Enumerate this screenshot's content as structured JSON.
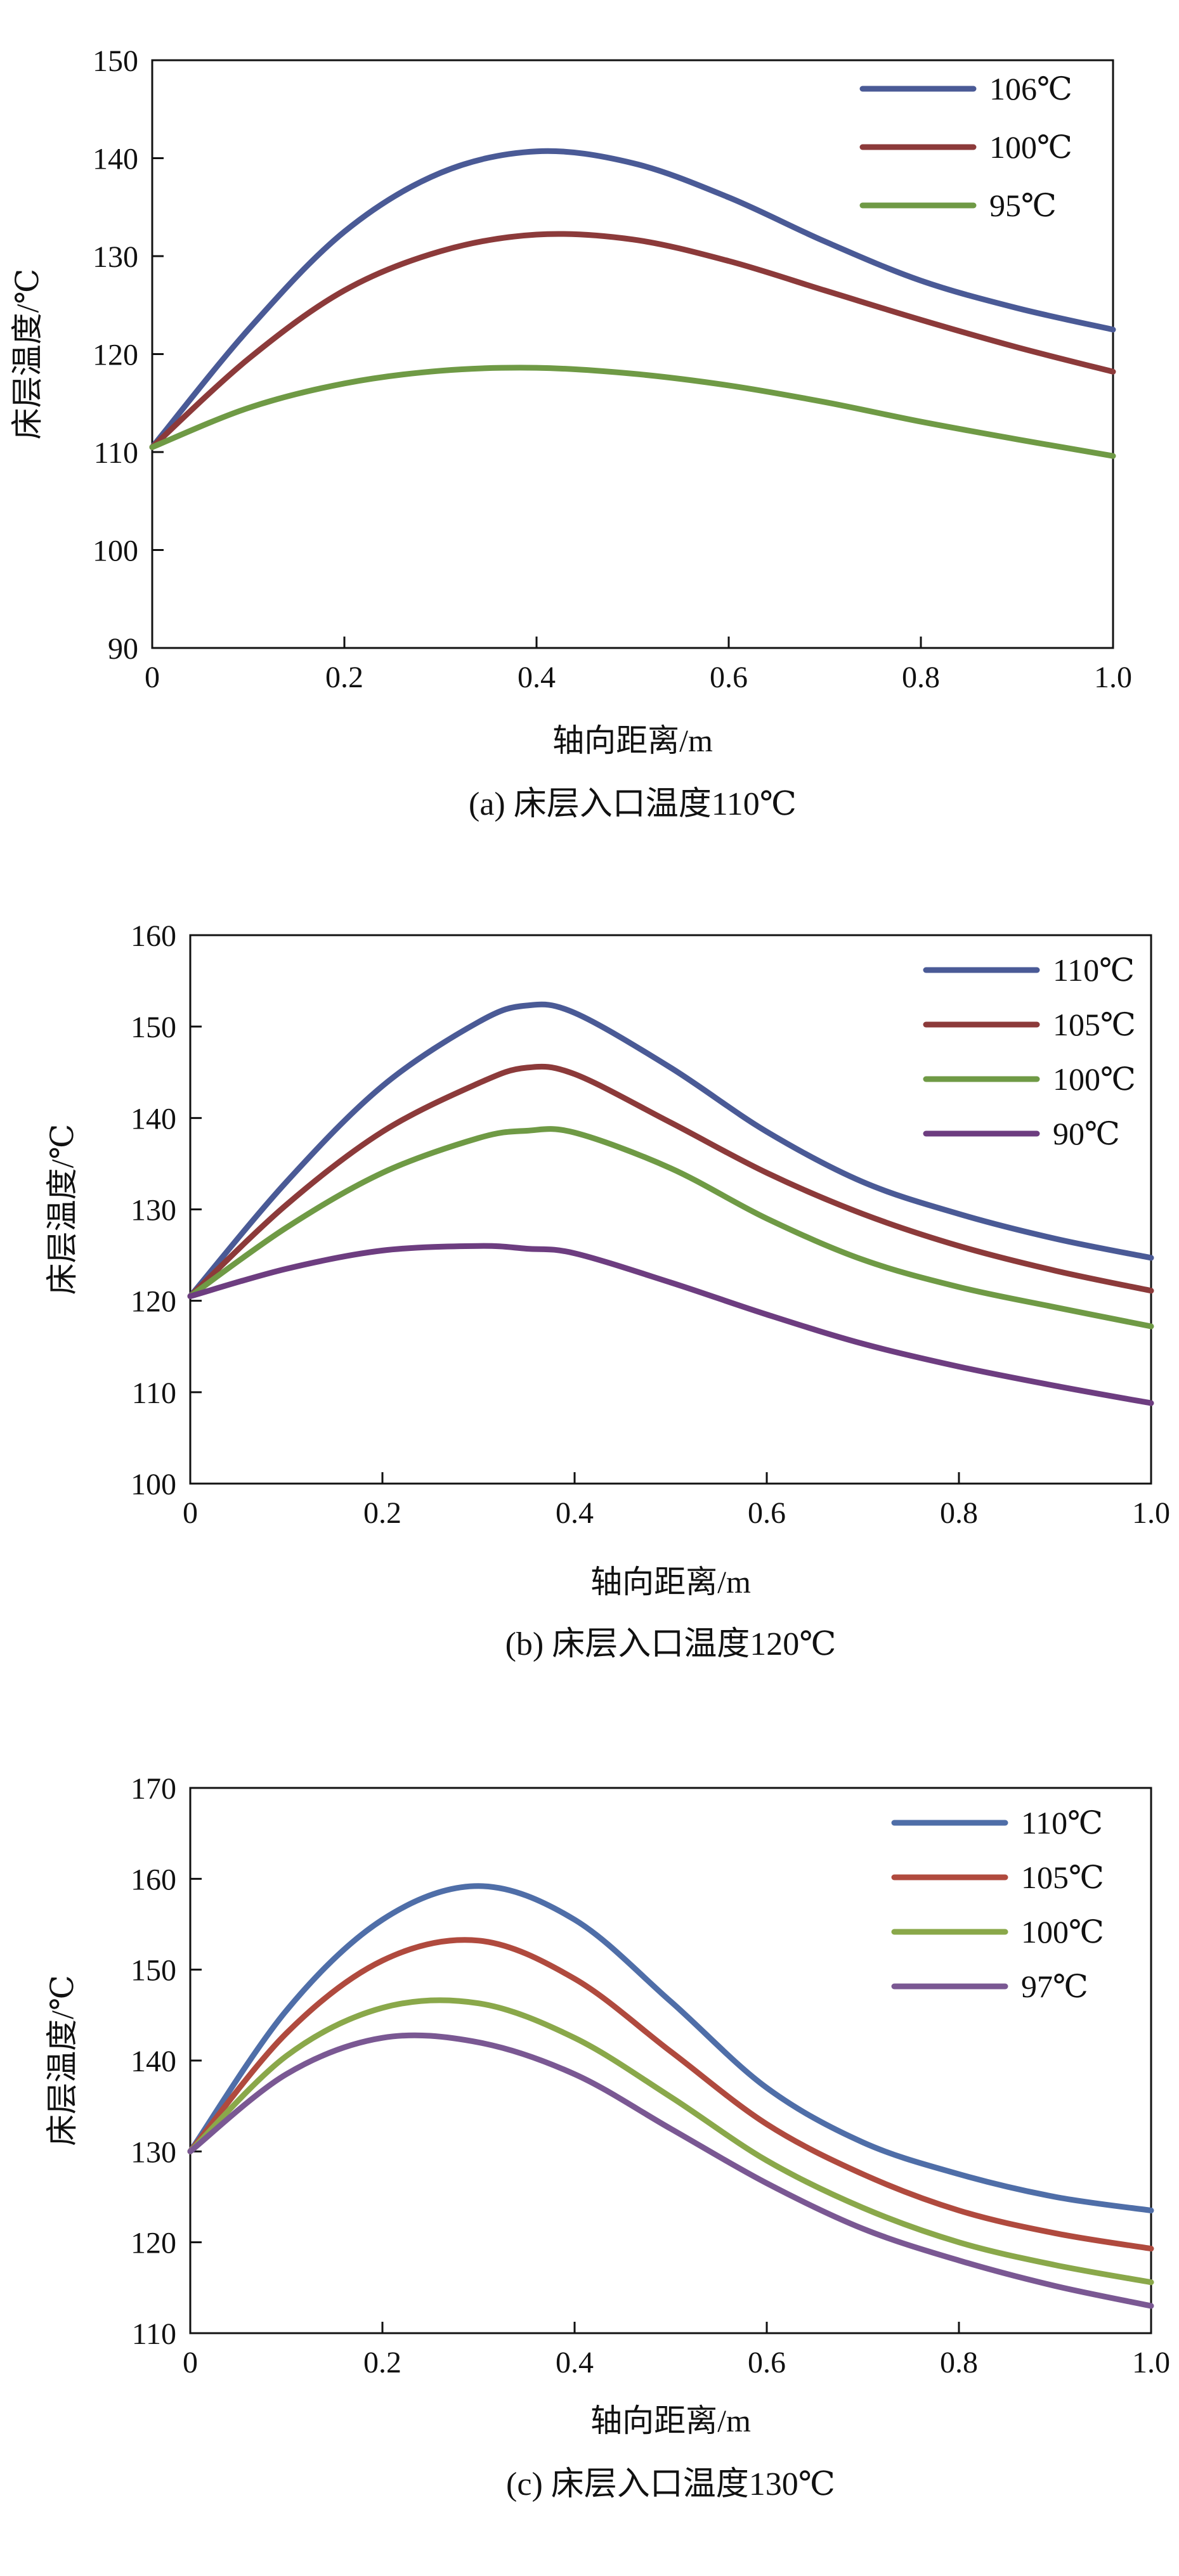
{
  "chart_data": [
    {
      "type": "line",
      "caption": "(a) 床层入口温度110℃",
      "xlabel": "轴向距离/m",
      "ylabel": "床层温度/℃",
      "xlim": [
        0,
        1.0
      ],
      "ylim": [
        90,
        150
      ],
      "x_ticks": [
        0,
        0.2,
        0.4,
        0.6,
        0.8,
        1.0
      ],
      "x_tick_labels": [
        "0",
        "0.2",
        "0.4",
        "0.6",
        "0.8",
        "1.0"
      ],
      "y_ticks": [
        90,
        100,
        110,
        120,
        130,
        140,
        150
      ],
      "y_tick_labels": [
        "90",
        "100",
        "110",
        "120",
        "130",
        "140",
        "150"
      ],
      "grid": false,
      "legend_position": "top-right",
      "x": [
        0,
        0.1,
        0.2,
        0.3,
        0.4,
        0.5,
        0.6,
        0.7,
        0.8,
        0.9,
        1.0
      ],
      "series": [
        {
          "name": "106℃",
          "color": "#4a5a96",
          "values": [
            110.5,
            122.5,
            132.5,
            138.5,
            140.7,
            139.5,
            136.0,
            131.5,
            127.5,
            124.7,
            122.5
          ]
        },
        {
          "name": "100℃",
          "color": "#8c3a3a",
          "values": [
            110.5,
            119.5,
            126.5,
            130.5,
            132.2,
            131.7,
            129.5,
            126.5,
            123.5,
            120.7,
            118.2
          ]
        },
        {
          "name": "95℃",
          "color": "#6f9a45",
          "values": [
            110.5,
            114.5,
            117.0,
            118.3,
            118.6,
            118.0,
            116.8,
            115.1,
            113.1,
            111.3,
            109.6
          ]
        }
      ]
    },
    {
      "type": "line",
      "caption": "(b) 床层入口温度120℃",
      "xlabel": "轴向距离/m",
      "ylabel": "床层温度/℃",
      "xlim": [
        0,
        1.0
      ],
      "ylim": [
        100,
        160
      ],
      "x_ticks": [
        0,
        0.2,
        0.4,
        0.6,
        0.8,
        1.0
      ],
      "x_tick_labels": [
        "0",
        "0.2",
        "0.4",
        "0.6",
        "0.8",
        "1.0"
      ],
      "y_ticks": [
        100,
        110,
        120,
        130,
        140,
        150,
        160
      ],
      "y_tick_labels": [
        "100",
        "110",
        "120",
        "130",
        "140",
        "150",
        "160"
      ],
      "grid": false,
      "legend_position": "top-right",
      "x": [
        0,
        0.1,
        0.2,
        0.3,
        0.35,
        0.4,
        0.5,
        0.6,
        0.7,
        0.8,
        0.9,
        1.0
      ],
      "series": [
        {
          "name": "110℃",
          "color": "#4a5a96",
          "values": [
            120.5,
            133.0,
            143.5,
            150.5,
            152.3,
            151.5,
            145.5,
            138.5,
            133.0,
            129.5,
            126.8,
            124.7
          ]
        },
        {
          "name": "105℃",
          "color": "#8c3a3a",
          "values": [
            120.5,
            130.5,
            138.5,
            143.8,
            145.5,
            144.8,
            139.5,
            134.0,
            129.5,
            126.0,
            123.3,
            121.1
          ]
        },
        {
          "name": "100℃",
          "color": "#6f9a45",
          "values": [
            120.5,
            128.0,
            134.0,
            137.8,
            138.6,
            138.4,
            134.5,
            129.0,
            124.5,
            121.5,
            119.3,
            117.2
          ]
        },
        {
          "name": "90℃",
          "color": "#6d3d80",
          "values": [
            120.5,
            123.5,
            125.5,
            126.0,
            125.7,
            125.2,
            122.0,
            118.5,
            115.3,
            112.8,
            110.7,
            108.8
          ]
        }
      ]
    },
    {
      "type": "line",
      "caption": "(c) 床层入口温度130℃",
      "xlabel": "轴向距离/m",
      "ylabel": "床层温度/℃",
      "xlim": [
        0,
        1.0
      ],
      "ylim": [
        110,
        170
      ],
      "x_ticks": [
        0,
        0.2,
        0.4,
        0.6,
        0.8,
        1.0
      ],
      "x_tick_labels": [
        "0",
        "0.2",
        "0.4",
        "0.6",
        "0.8",
        "1.0"
      ],
      "y_ticks": [
        110,
        120,
        130,
        140,
        150,
        160,
        170
      ],
      "y_tick_labels": [
        "110",
        "120",
        "130",
        "140",
        "150",
        "160",
        "170"
      ],
      "grid": false,
      "legend_position": "top-right",
      "x": [
        0,
        0.1,
        0.2,
        0.3,
        0.4,
        0.5,
        0.6,
        0.7,
        0.8,
        0.9,
        1.0
      ],
      "series": [
        {
          "name": "110℃",
          "color": "#4f6ea8",
          "values": [
            130.0,
            145.5,
            155.5,
            159.2,
            155.5,
            146.5,
            137.0,
            131.0,
            127.5,
            125.0,
            123.5
          ]
        },
        {
          "name": "105℃",
          "color": "#b04a3e",
          "values": [
            130.0,
            143.0,
            151.0,
            153.2,
            149.0,
            141.0,
            133.0,
            127.5,
            123.5,
            121.0,
            119.3
          ]
        },
        {
          "name": "100℃",
          "color": "#8aa84a",
          "values": [
            130.0,
            140.5,
            145.8,
            146.3,
            142.5,
            136.0,
            129.0,
            123.8,
            120.0,
            117.5,
            115.6
          ]
        },
        {
          "name": "97℃",
          "color": "#7a5893",
          "values": [
            130.0,
            138.5,
            142.5,
            142.0,
            138.5,
            132.5,
            126.5,
            121.5,
            118.0,
            115.2,
            113.0
          ]
        }
      ]
    }
  ]
}
